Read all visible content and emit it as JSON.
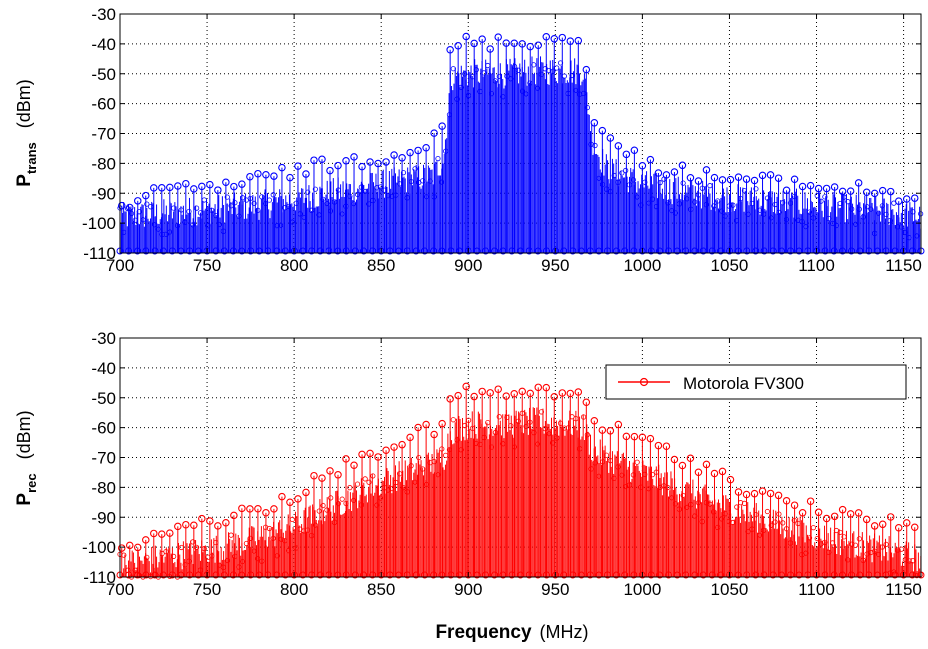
{
  "chart_data": [
    {
      "type": "stem",
      "xlabel": "",
      "ylabel": {
        "symbol": "P",
        "subscript": "trans",
        "unit": "(dBm)"
      },
      "xlim": [
        700,
        1160
      ],
      "ylim": [
        -110,
        -30
      ],
      "xticks": [
        700,
        750,
        800,
        850,
        900,
        950,
        1000,
        1050,
        1100,
        1150
      ],
      "yticks": [
        -30,
        -40,
        -50,
        -60,
        -70,
        -80,
        -90,
        -100,
        -110
      ],
      "grid": true,
      "color": "#0000ff",
      "baseline": -110,
      "legend": null,
      "envelope": {
        "x": [
          700,
          720,
          740,
          760,
          780,
          800,
          820,
          840,
          860,
          880,
          886,
          890,
          900,
          920,
          940,
          960,
          966,
          972,
          980,
          1000,
          1020,
          1040,
          1060,
          1080,
          1100,
          1120,
          1140,
          1160
        ],
        "peak_dBm": [
          -91,
          -88,
          -86,
          -85,
          -83,
          -80,
          -78,
          -76,
          -74,
          -70,
          -64,
          -38,
          -37,
          -37,
          -36,
          -36,
          -36,
          -62,
          -70,
          -77,
          -80,
          -82,
          -83,
          -84,
          -85,
          -86,
          -87,
          -90
        ],
        "mid_dBm": [
          -100,
          -99,
          -98,
          -97,
          -96,
          -94,
          -92,
          -90,
          -88,
          -86,
          -80,
          -53,
          -52,
          -52,
          -51,
          -51,
          -51,
          -76,
          -84,
          -89,
          -91,
          -93,
          -94,
          -95,
          -96,
          -97,
          -98,
          -100
        ]
      }
    },
    {
      "type": "stem",
      "xlabel": {
        "bold": "Frequency",
        "unit": "(MHz)"
      },
      "ylabel": {
        "symbol": "P",
        "subscript": "rec",
        "unit": "(dBm)"
      },
      "xlim": [
        700,
        1160
      ],
      "ylim": [
        -110,
        -30
      ],
      "xticks": [
        700,
        750,
        800,
        850,
        900,
        950,
        1000,
        1050,
        1100,
        1150
      ],
      "yticks": [
        -30,
        -40,
        -50,
        -60,
        -70,
        -80,
        -90,
        -100,
        -110
      ],
      "grid": true,
      "color": "#ff0000",
      "baseline": -110,
      "legend": {
        "label": "Motorola FV300",
        "placement": "top-right"
      },
      "envelope": {
        "x": [
          700,
          720,
          740,
          760,
          780,
          800,
          820,
          840,
          860,
          880,
          886,
          890,
          900,
          920,
          940,
          960,
          966,
          972,
          980,
          1000,
          1020,
          1040,
          1060,
          1080,
          1100,
          1120,
          1140,
          1160
        ],
        "peak_dBm": [
          -100,
          -92,
          -90,
          -88,
          -85,
          -80,
          -73,
          -67,
          -62,
          -58,
          -57,
          -47,
          -46,
          -46,
          -46,
          -46,
          -46,
          -56,
          -57,
          -62,
          -67,
          -72,
          -78,
          -82,
          -85,
          -88,
          -89,
          -91
        ],
        "mid_dBm": [
          -108,
          -106,
          -104,
          -102,
          -99,
          -95,
          -89,
          -83,
          -78,
          -74,
          -72,
          -63,
          -61,
          -61,
          -60,
          -61,
          -62,
          -70,
          -72,
          -77,
          -82,
          -87,
          -91,
          -95,
          -98,
          -101,
          -103,
          -106
        ]
      }
    }
  ]
}
